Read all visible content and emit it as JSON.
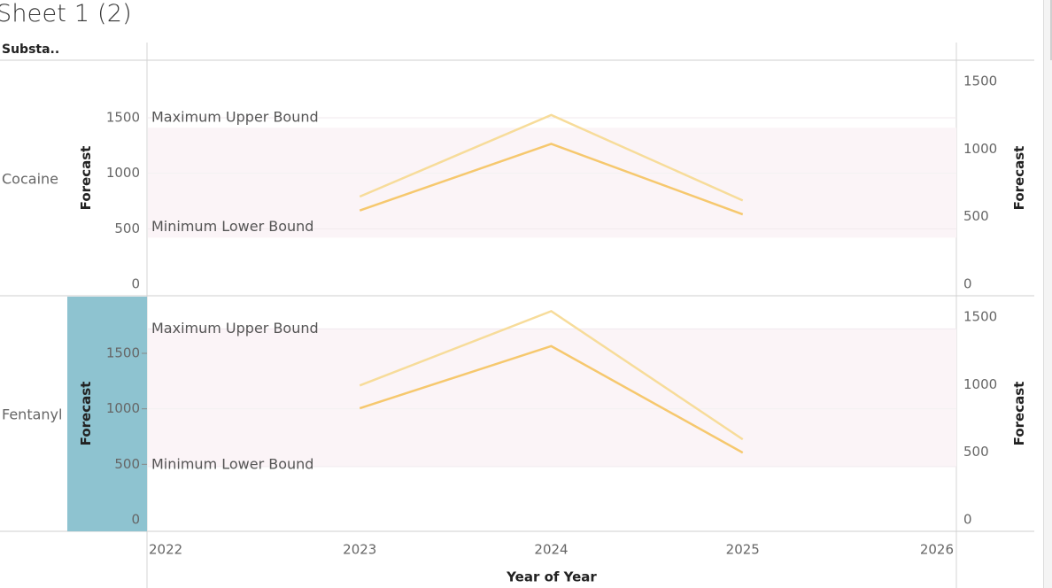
{
  "sheet_title": "Sheet 1 (2)",
  "header": {
    "substance_label": "Substa.."
  },
  "colors": {
    "upper_line": "#f7dc9a",
    "main_line": "#f6c86e",
    "band": "#fbf4f7",
    "highlight": "#8ec3d0"
  },
  "chart_data": {
    "type": "line",
    "x_title": "Year of Year",
    "x_ticks": [
      "2022",
      "2023",
      "2024",
      "2025",
      "2026"
    ],
    "x_range": [
      2022,
      2026
    ],
    "panels": [
      {
        "row_label": "Cocaine",
        "left_axis_title": "Forecast",
        "right_axis_title": "Forecast",
        "left_ticks": [
          "1500",
          "1000",
          "500",
          "0"
        ],
        "right_ticks": [
          "1500",
          "1000",
          "500",
          "0"
        ],
        "ref_lines": {
          "upper_label": "Maximum Upper Bound",
          "lower_label": "Minimum Lower Bound"
        },
        "upper_series": [
          {
            "x": 2023,
            "y": 790
          },
          {
            "x": 2024,
            "y": 1525
          },
          {
            "x": 2025,
            "y": 755
          }
        ],
        "main_series": [
          {
            "x": 2023,
            "y": 665
          },
          {
            "x": 2024,
            "y": 1265
          },
          {
            "x": 2025,
            "y": 630
          }
        ],
        "band_range": [
          420,
          1410
        ],
        "upper_bound": 1500,
        "lower_bound": 500,
        "highlighted": false
      },
      {
        "row_label": "Fentanyl",
        "left_axis_title": "Forecast",
        "right_axis_title": "Forecast",
        "left_ticks": [
          "1500",
          "1000",
          "500",
          "0"
        ],
        "right_ticks": [
          "1500",
          "1000",
          "500",
          "0"
        ],
        "ref_lines": {
          "upper_label": "Maximum Upper Bound",
          "lower_label": "Minimum Lower Bound"
        },
        "upper_series": [
          {
            "x": 2023,
            "y": 1210
          },
          {
            "x": 2024,
            "y": 1880
          },
          {
            "x": 2025,
            "y": 725
          }
        ],
        "main_series": [
          {
            "x": 2023,
            "y": 1005
          },
          {
            "x": 2024,
            "y": 1565
          },
          {
            "x": 2025,
            "y": 605
          }
        ],
        "band_range": [
          480,
          1720
        ],
        "upper_bound": 1720,
        "lower_bound": 480,
        "highlighted": true
      }
    ]
  }
}
